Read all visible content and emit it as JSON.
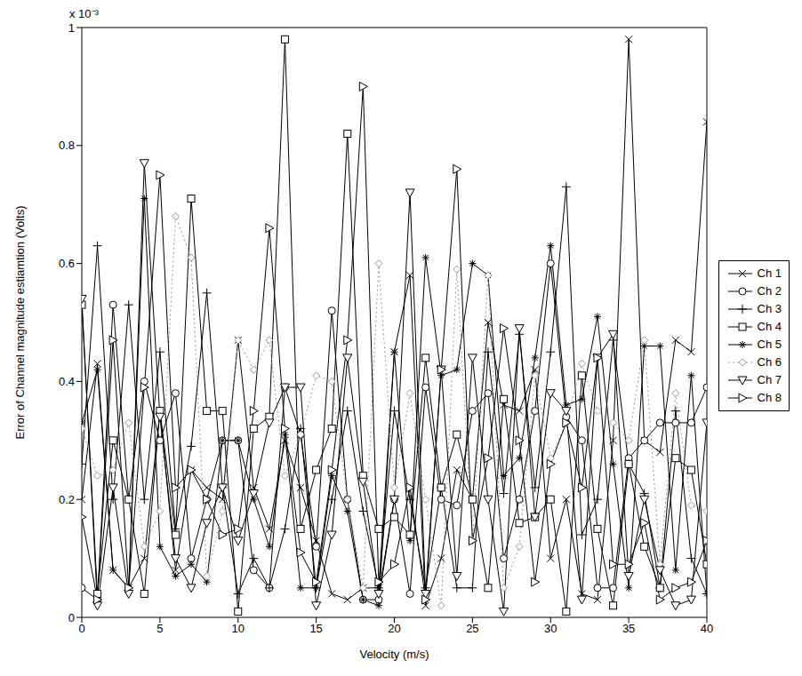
{
  "chart_data": {
    "type": "line",
    "x_label": "Velocity (m/s)",
    "y_label": "Error of Channel magnitude estiamtion (Volts)",
    "y_axis_multiplier": "x 10⁻³",
    "x": [
      0,
      1,
      2,
      3,
      4,
      5,
      6,
      7,
      8,
      9,
      10,
      11,
      12,
      13,
      14,
      15,
      16,
      17,
      18,
      19,
      20,
      21,
      22,
      23,
      24,
      25,
      26,
      27,
      28,
      29,
      30,
      31,
      32,
      33,
      34,
      35,
      36,
      37,
      38,
      39,
      40
    ],
    "xlim": [
      0,
      40
    ],
    "xticks": [
      0,
      5,
      10,
      15,
      20,
      25,
      30,
      35,
      40
    ],
    "ylim": [
      0,
      1
    ],
    "yticks": [
      0,
      0.2,
      0.4,
      0.6,
      0.8,
      1
    ],
    "grid": false,
    "legend": "right",
    "series": [
      {
        "name": "Ch 1",
        "color": "#000000",
        "marker": "x",
        "line_style": "solid",
        "values": [
          0.2,
          0.43,
          0.08,
          0.05,
          0.1,
          0.35,
          0.08,
          0.25,
          0.22,
          0.2,
          0.47,
          0.22,
          0.15,
          0.3,
          0.22,
          0.13,
          0.04,
          0.03,
          0.05,
          0.05,
          0.45,
          0.58,
          0.02,
          0.1,
          0.25,
          0.2,
          0.5,
          0.36,
          0.35,
          0.42,
          0.1,
          0.2,
          0.04,
          0.03,
          0.3,
          0.98,
          0.3,
          0.28,
          0.47,
          0.45,
          0.84
        ]
      },
      {
        "name": "Ch 2",
        "color": "#000000",
        "marker": "circle",
        "line_style": "solid",
        "values": [
          0.05,
          0.03,
          0.53,
          0.2,
          0.4,
          0.3,
          0.38,
          0.1,
          0.2,
          0.3,
          0.3,
          0.08,
          0.05,
          0.39,
          0.31,
          0.12,
          0.52,
          0.2,
          0.03,
          0.03,
          0.2,
          0.04,
          0.39,
          0.2,
          0.19,
          0.35,
          0.38,
          0.1,
          0.2,
          0.35,
          0.6,
          0.34,
          0.3,
          0.05,
          0.05,
          0.27,
          0.3,
          0.33,
          0.33,
          0.33,
          0.39
        ]
      },
      {
        "name": "Ch 3",
        "color": "#000000",
        "marker": "plus",
        "line_style": "solid",
        "values": [
          0.26,
          0.63,
          0.2,
          0.53,
          0.2,
          0.45,
          0.15,
          0.29,
          0.55,
          0.22,
          0.04,
          0.1,
          0.05,
          0.15,
          0.32,
          0.05,
          0.2,
          0.35,
          0.18,
          0.05,
          0.35,
          0.2,
          0.05,
          0.22,
          0.05,
          0.05,
          0.45,
          0.21,
          0.48,
          0.22,
          0.45,
          0.73,
          0.14,
          0.2,
          0.47,
          0.26,
          0.21,
          0.05,
          0.35,
          0.1,
          0.04
        ]
      },
      {
        "name": "Ch 4",
        "color": "#000000",
        "marker": "square",
        "line_style": "solid",
        "values": [
          0.53,
          0.04,
          0.3,
          0.2,
          0.04,
          0.35,
          0.14,
          0.71,
          0.35,
          0.35,
          0.01,
          0.32,
          0.34,
          0.98,
          0.15,
          0.25,
          0.32,
          0.82,
          0.24,
          0.15,
          0.17,
          0.14,
          0.44,
          0.22,
          0.31,
          0.2,
          0.05,
          0.37,
          0.16,
          0.17,
          0.2,
          0.01,
          0.41,
          0.15,
          0.02,
          0.26,
          0.12,
          0.05,
          0.27,
          0.25,
          0.09
        ]
      },
      {
        "name": "Ch 5",
        "color": "#000000",
        "marker": "star",
        "line_style": "solid",
        "values": [
          0.33,
          0.42,
          0.08,
          0.05,
          0.71,
          0.12,
          0.07,
          0.09,
          0.06,
          0.3,
          0.3,
          0.2,
          0.12,
          0.31,
          0.05,
          0.05,
          0.24,
          0.18,
          0.03,
          0.02,
          0.45,
          0.13,
          0.61,
          0.41,
          0.42,
          0.6,
          0.58,
          0.24,
          0.27,
          0.44,
          0.63,
          0.36,
          0.37,
          0.51,
          0.26,
          0.05,
          0.46,
          0.46,
          0.08,
          0.41,
          0.04
        ]
      },
      {
        "name": "Ch 6",
        "color": "#999999",
        "marker": "diamond",
        "line_style": "dotted",
        "values": [
          0.32,
          0.24,
          0.25,
          0.33,
          0.12,
          0.18,
          0.68,
          0.61,
          0.07,
          0.18,
          0.47,
          0.42,
          0.47,
          0.24,
          0.31,
          0.41,
          0.4,
          0.2,
          0.05,
          0.6,
          0.22,
          0.38,
          0.2,
          0.02,
          0.59,
          0.13,
          0.58,
          0.05,
          0.12,
          0.41,
          0.27,
          0.33,
          0.43,
          0.35,
          0.33,
          0.3,
          0.47,
          0.09,
          0.38,
          0.19,
          0.18
        ]
      },
      {
        "name": "Ch 7",
        "color": "#000000",
        "marker": "triangle-down",
        "line_style": "solid",
        "values": [
          0.54,
          0.02,
          0.22,
          0.04,
          0.77,
          0.34,
          0.1,
          0.05,
          0.16,
          0.22,
          0.13,
          0.21,
          0.33,
          0.39,
          0.39,
          0.02,
          0.14,
          0.44,
          0.23,
          0.04,
          0.2,
          0.72,
          0.04,
          0.42,
          0.07,
          0.44,
          0.2,
          0.01,
          0.49,
          0.17,
          0.38,
          0.35,
          0.03,
          0.44,
          0.48,
          0.07,
          0.2,
          0.08,
          0.02,
          0.03,
          0.33
        ]
      },
      {
        "name": "Ch 8",
        "color": "#000000",
        "marker": "triangle-right",
        "line_style": "solid",
        "values": [
          0.17,
          0.03,
          0.47,
          0.05,
          0.39,
          0.75,
          0.22,
          0.25,
          0.2,
          0.14,
          0.15,
          0.35,
          0.66,
          0.32,
          0.11,
          0.06,
          0.25,
          0.47,
          0.9,
          0.06,
          0.09,
          0.22,
          0.03,
          0.42,
          0.76,
          0.13,
          0.27,
          0.49,
          0.3,
          0.06,
          0.26,
          0.33,
          0.22,
          0.44,
          0.09,
          0.09,
          0.16,
          0.03,
          0.05,
          0.06,
          0.13
        ]
      }
    ]
  }
}
